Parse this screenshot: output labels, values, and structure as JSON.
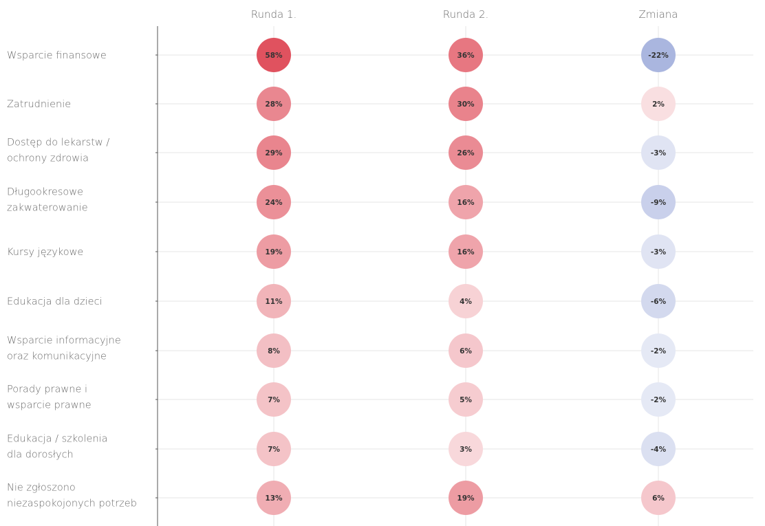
{
  "chart_data": {
    "type": "heatmap",
    "columns": [
      "Runda 1.",
      "Runda 2.",
      "Zmiana"
    ],
    "rows": [
      {
        "label": [
          "Wsparcie finansowe"
        ],
        "values": [
          58,
          36,
          -22
        ]
      },
      {
        "label": [
          "Zatrudnienie"
        ],
        "values": [
          28,
          30,
          2
        ]
      },
      {
        "label": [
          "Dostęp do lekarstw /",
          "ochrony zdrowia"
        ],
        "values": [
          29,
          26,
          -3
        ]
      },
      {
        "label": [
          "Długookresowe",
          "zakwaterowanie"
        ],
        "values": [
          24,
          16,
          -9
        ]
      },
      {
        "label": [
          "Kursy językowe"
        ],
        "values": [
          19,
          16,
          -3
        ]
      },
      {
        "label": [
          "Edukacja dla dzieci"
        ],
        "values": [
          11,
          4,
          -6
        ]
      },
      {
        "label": [
          "Wsparcie informacyjne",
          "oraz komunikacyjne"
        ],
        "values": [
          8,
          6,
          -2
        ]
      },
      {
        "label": [
          "Porady prawne i",
          "wsparcie prawne"
        ],
        "values": [
          7,
          5,
          -2
        ]
      },
      {
        "label": [
          "Edukacja / szkolenia",
          "dla dorosłych"
        ],
        "values": [
          7,
          3,
          -4
        ]
      },
      {
        "label": [
          "Nie zgłoszono",
          "niezaspokojonych potrzeb"
        ],
        "values": [
          13,
          19,
          6
        ]
      }
    ],
    "value_format": "percent",
    "colors": {
      "positive_max": "#e0525f",
      "negative_max": "#aab6df",
      "neutral": "#ffffff",
      "grid": "#e6e6e6",
      "axis": "#555555",
      "text": "#6b6b6b"
    }
  }
}
